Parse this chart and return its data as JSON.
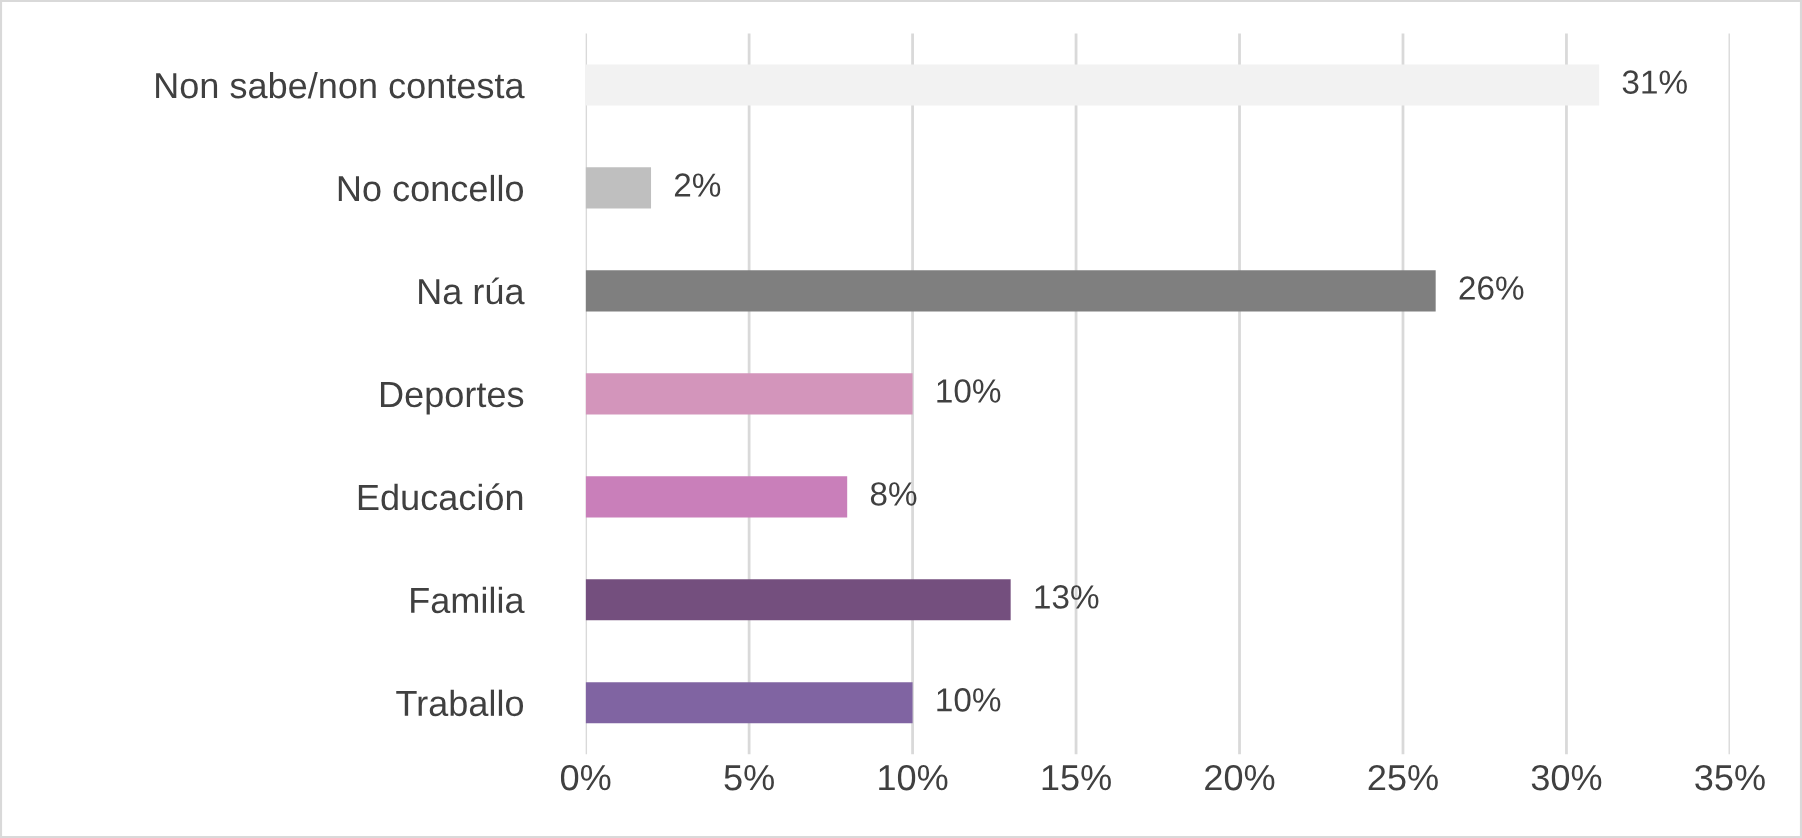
{
  "chart_data": {
    "type": "bar",
    "orientation": "horizontal",
    "categories": [
      "Non sabe/non contesta",
      "No concello",
      "Na rúa",
      "Deportes",
      "Educación",
      "Familia",
      "Traballo"
    ],
    "values": [
      31,
      2,
      26,
      10,
      8,
      13,
      10
    ],
    "colors": [
      "#f2f2f2",
      "#bfbfbf",
      "#7f7f7f",
      "#d395bb",
      "#c97fba",
      "#744f7e",
      "#8064a2"
    ],
    "value_labels": [
      "31%",
      "2%",
      "26%",
      "10%",
      "8%",
      "13%",
      "10%"
    ],
    "xlim": [
      0,
      35
    ],
    "xticks": [
      {
        "value": 0,
        "label": "0%"
      },
      {
        "value": 5,
        "label": "5%"
      },
      {
        "value": 10,
        "label": "10%"
      },
      {
        "value": 15,
        "label": "15%"
      },
      {
        "value": 20,
        "label": "20%"
      },
      {
        "value": 25,
        "label": "25%"
      },
      {
        "value": 30,
        "label": "30%"
      },
      {
        "value": 35,
        "label": "35%"
      }
    ],
    "grid": "x",
    "legend": false
  }
}
